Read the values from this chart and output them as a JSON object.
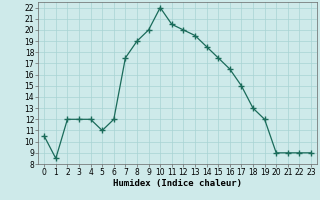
{
  "x": [
    0,
    1,
    2,
    3,
    4,
    5,
    6,
    7,
    8,
    9,
    10,
    11,
    12,
    13,
    14,
    15,
    16,
    17,
    18,
    19,
    20,
    21,
    22,
    23
  ],
  "y": [
    10.5,
    8.5,
    12,
    12,
    12,
    11,
    12,
    17.5,
    19,
    20,
    22,
    20.5,
    20,
    19.5,
    18.5,
    17.5,
    16.5,
    15,
    13,
    12,
    9,
    9,
    9,
    9
  ],
  "line_color": "#1a6b5a",
  "marker": "+",
  "marker_size": 4,
  "bg_color": "#ceeaea",
  "grid_color": "#a8d4d4",
  "xlabel": "Humidex (Indice chaleur)",
  "xlim": [
    -0.5,
    23.5
  ],
  "ylim": [
    8,
    22.5
  ],
  "yticks": [
    8,
    9,
    10,
    11,
    12,
    13,
    14,
    15,
    16,
    17,
    18,
    19,
    20,
    21,
    22
  ],
  "xticks": [
    0,
    1,
    2,
    3,
    4,
    5,
    6,
    7,
    8,
    9,
    10,
    11,
    12,
    13,
    14,
    15,
    16,
    17,
    18,
    19,
    20,
    21,
    22,
    23
  ],
  "tick_fontsize": 5.5,
  "xlabel_fontsize": 6.5
}
